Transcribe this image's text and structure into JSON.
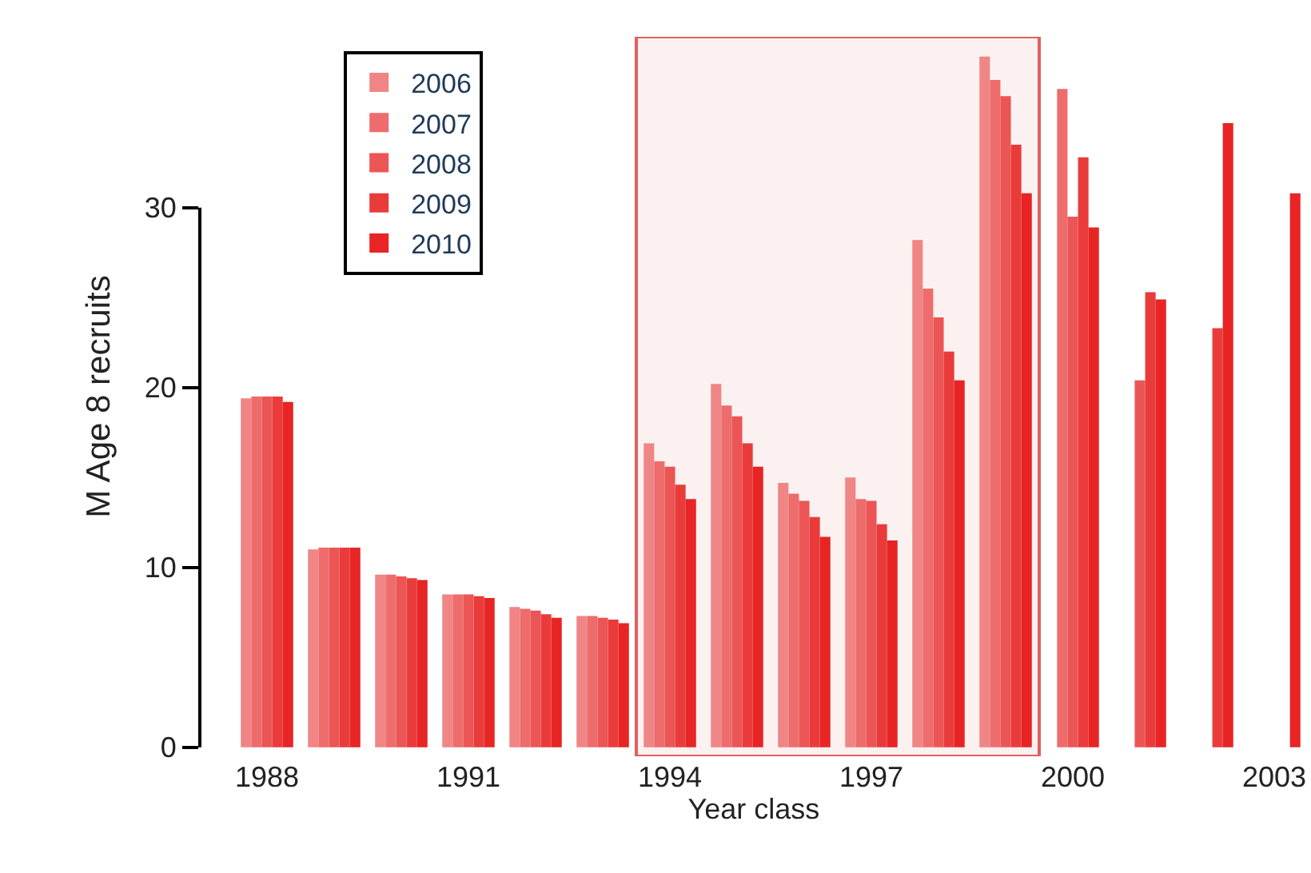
{
  "chart_data": {
    "type": "bar",
    "ylabel": "M Age 8 recruits",
    "xlabel": "Year class",
    "x": [
      1988,
      1989,
      1990,
      1991,
      1992,
      1993,
      1994,
      1995,
      1996,
      1997,
      1998,
      1999,
      2000,
      2001,
      2002,
      2003
    ],
    "series": [
      {
        "name": "2006",
        "color": "#f08585",
        "values": [
          19.4,
          11.0,
          9.6,
          8.5,
          7.8,
          7.3,
          16.9,
          20.2,
          14.7,
          15.0,
          28.2,
          38.4,
          null,
          null,
          null,
          null
        ]
      },
      {
        "name": "2007",
        "color": "#ee6c6c",
        "values": [
          19.5,
          11.1,
          9.6,
          8.5,
          7.7,
          7.3,
          15.9,
          19.0,
          14.1,
          13.8,
          25.5,
          37.1,
          36.6,
          null,
          null,
          null
        ]
      },
      {
        "name": "2008",
        "color": "#ec5555",
        "values": [
          19.5,
          11.1,
          9.5,
          8.5,
          7.6,
          7.2,
          15.6,
          18.4,
          13.7,
          13.7,
          23.9,
          36.2,
          29.5,
          20.4,
          null,
          null
        ]
      },
      {
        "name": "2009",
        "color": "#ea3b3b",
        "values": [
          19.5,
          11.1,
          9.4,
          8.4,
          7.4,
          7.1,
          14.6,
          16.9,
          12.8,
          12.4,
          22.0,
          33.5,
          32.8,
          25.3,
          23.3,
          null
        ]
      },
      {
        "name": "2010",
        "color": "#e82424",
        "values": [
          19.2,
          11.1,
          9.3,
          8.3,
          7.2,
          6.9,
          13.8,
          15.6,
          11.7,
          11.5,
          20.4,
          30.8,
          28.9,
          24.9,
          34.7,
          30.8
        ]
      }
    ],
    "xlim": [
      1987,
      2003.5
    ],
    "xticks": [
      1988,
      1991,
      1994,
      1997,
      2000,
      2003
    ],
    "ylim": [
      -0.5,
      39.5
    ],
    "yticks": [
      0,
      10,
      20,
      30
    ],
    "bands": [
      {
        "axis": "x",
        "from": 1993.5,
        "to": 1999.5,
        "color": "#e06060"
      }
    ],
    "legend": "top left",
    "grid": false
  }
}
